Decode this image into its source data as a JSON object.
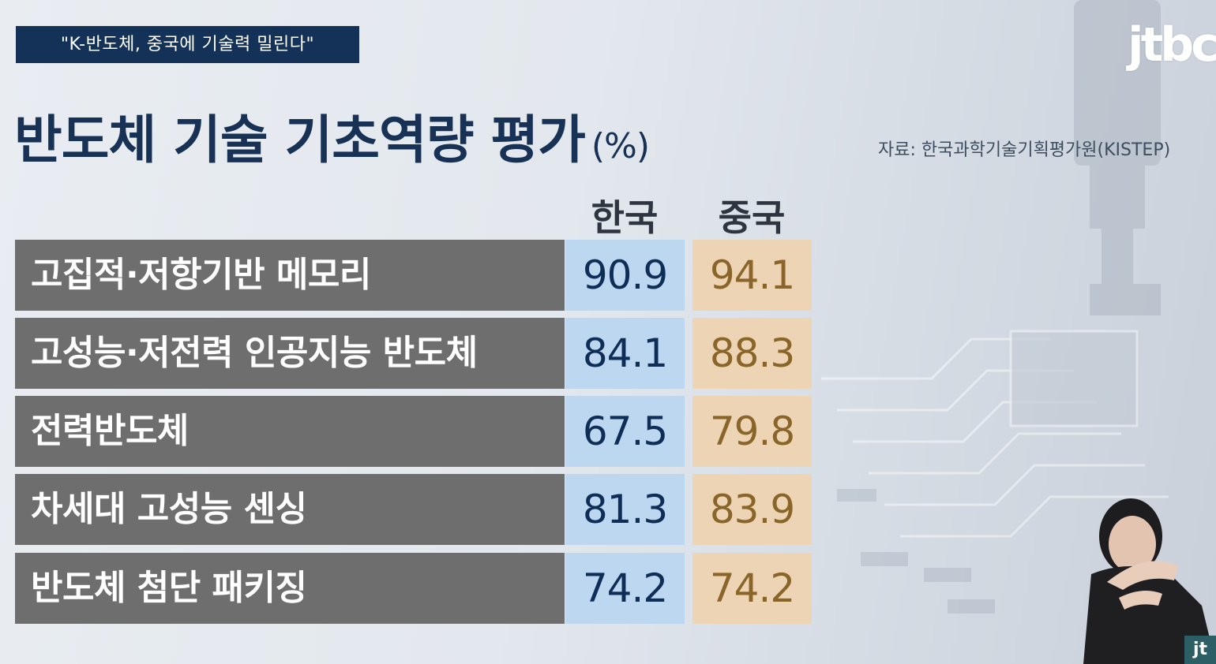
{
  "tag": "\"K-반도체, 중국에 기술력 밀린다\"",
  "logo": "jtbc",
  "title": "반도체 기술 기초역량 평가",
  "unit": "(%)",
  "source": "자료: 한국과학기술기획평가원(KISTEP)",
  "corner_logo": "jt",
  "colors": {
    "korea": "#bcd7ef",
    "china": "#ecd4b4",
    "label_bg": "#6e6e6e",
    "title": "#173255"
  },
  "chart_data": {
    "type": "table",
    "title": "반도체 기술 기초역량 평가",
    "unit": "(%)",
    "columns": [
      "한국",
      "중국"
    ],
    "rows": [
      {
        "label": "고집적·저항기반 메모리",
        "values": [
          "90.9",
          "94.1"
        ]
      },
      {
        "label": "고성능·저전력 인공지능 반도체",
        "values": [
          "84.1",
          "88.3"
        ]
      },
      {
        "label": "전력반도체",
        "values": [
          "67.5",
          "79.8"
        ]
      },
      {
        "label": "차세대 고성능 센싱",
        "values": [
          "81.3",
          "83.9"
        ]
      },
      {
        "label": "반도체 첨단 패키징",
        "values": [
          "74.2",
          "74.2"
        ]
      }
    ]
  }
}
